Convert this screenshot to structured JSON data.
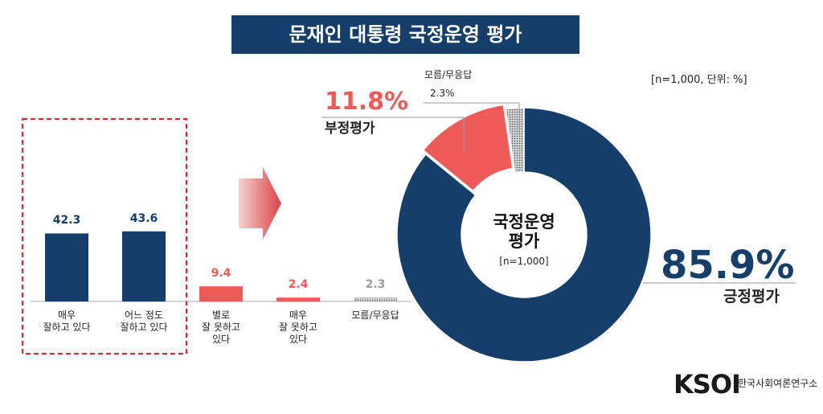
{
  "header": {
    "title": "문재인 대통령 국정운영 평가",
    "note": "[n=1,000,  단위: %]"
  },
  "logo": {
    "mark": "KSOI",
    "name": "한국사회여론연구소"
  },
  "chart_data": [
    {
      "type": "bar",
      "categories": [
        "매우\n잘하고 있다",
        "어느 정도\n잘하고 있다",
        "별로\n잘 못하고\n있다",
        "매우\n잘 못하고\n있다",
        "모름/무응답"
      ],
      "values": [
        42.3,
        43.6,
        9.4,
        2.4,
        2.3
      ],
      "colors": [
        "#163e6a",
        "#163e6a",
        "#ee5a57",
        "#ee5a57",
        "#9a9a9a"
      ]
    },
    {
      "type": "pie",
      "center_label": "국정운영\n평가",
      "center_note": "[n=1,000]",
      "categories": [
        "긍정평가",
        "부정평가",
        "모름/무응답"
      ],
      "values": [
        85.9,
        11.8,
        2.3
      ],
      "value_labels": [
        "85.9%",
        "11.8%",
        "2.3%"
      ],
      "colors": [
        "#163e6a",
        "#ee5a57",
        "#9a9a9a"
      ]
    }
  ]
}
